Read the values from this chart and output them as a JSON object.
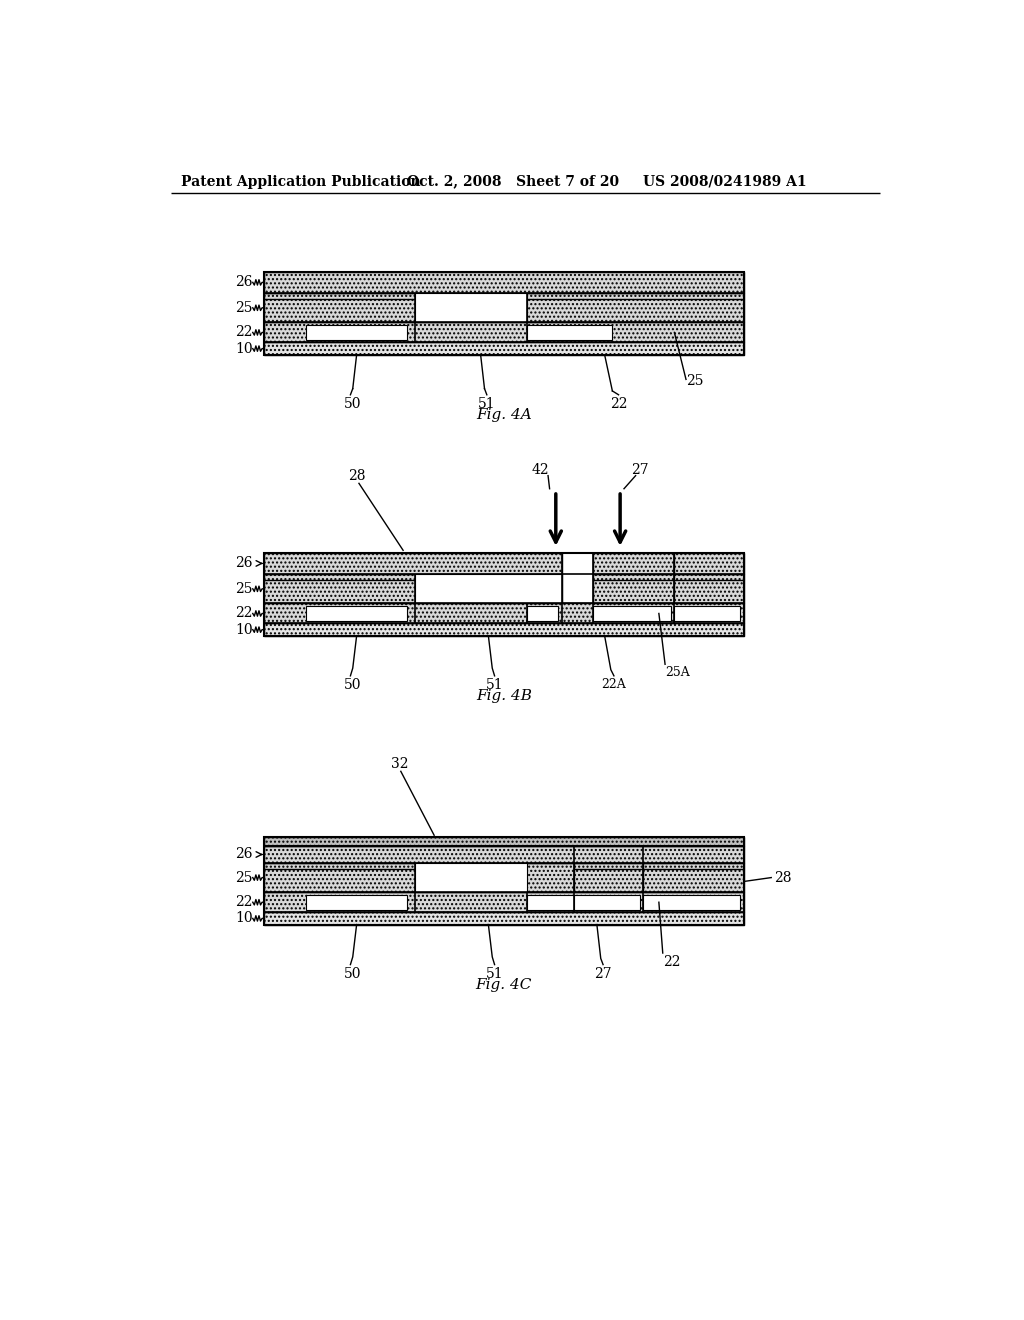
{
  "header_left": "Patent Application Publication",
  "header_mid": "Oct. 2, 2008   Sheet 7 of 20",
  "header_right": "US 2008/0241989 A1",
  "bg_color": "#ffffff",
  "fig4A_label": "Fig. 4A",
  "fig4B_label": "Fig. 4B",
  "fig4C_label": "Fig. 4C",
  "light_hatch_fc": "#e0e0e0",
  "medium_hatch_fc": "#d0d0d0",
  "dark_hatch_fc": "#b0b0b0",
  "top32_fc": "#c8c8c8",
  "substrate_fc": "#f0f0f0"
}
